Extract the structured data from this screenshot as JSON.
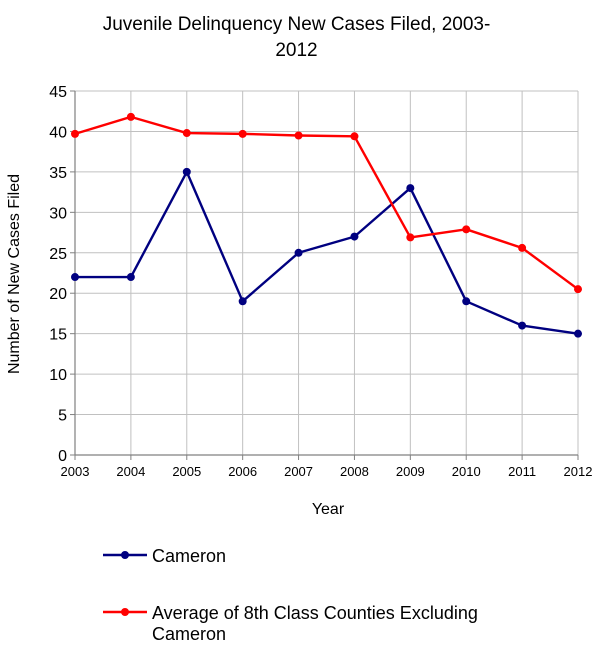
{
  "chart_data": {
    "type": "line",
    "title_lines": [
      "Juvenile Delinquency New Cases Filed, 2003-",
      "2012"
    ],
    "xlabel": "Year",
    "ylabel": "Number of New Cases Filed",
    "ylim": [
      0,
      45
    ],
    "yticks": [
      0,
      5,
      10,
      15,
      20,
      25,
      30,
      35,
      40,
      45
    ],
    "categories": [
      "2003",
      "2004",
      "2005",
      "2006",
      "2007",
      "2008",
      "2009",
      "2010",
      "2011",
      "2012"
    ],
    "grid": true,
    "legend_position": "bottom",
    "series": [
      {
        "name": "Cameron",
        "legend_lines": [
          "Cameron"
        ],
        "color": "#000080",
        "values": [
          22,
          22,
          35,
          19,
          25,
          27,
          33,
          19,
          16,
          15
        ]
      },
      {
        "name": "Average of 8th Class Counties Excluding Cameron",
        "legend_lines": [
          "Average of 8th Class Counties Excluding",
          "Cameron"
        ],
        "color": "#ff0000",
        "values": [
          39.7,
          41.8,
          39.8,
          39.7,
          39.5,
          39.4,
          26.9,
          27.9,
          25.6,
          20.5
        ]
      }
    ]
  }
}
